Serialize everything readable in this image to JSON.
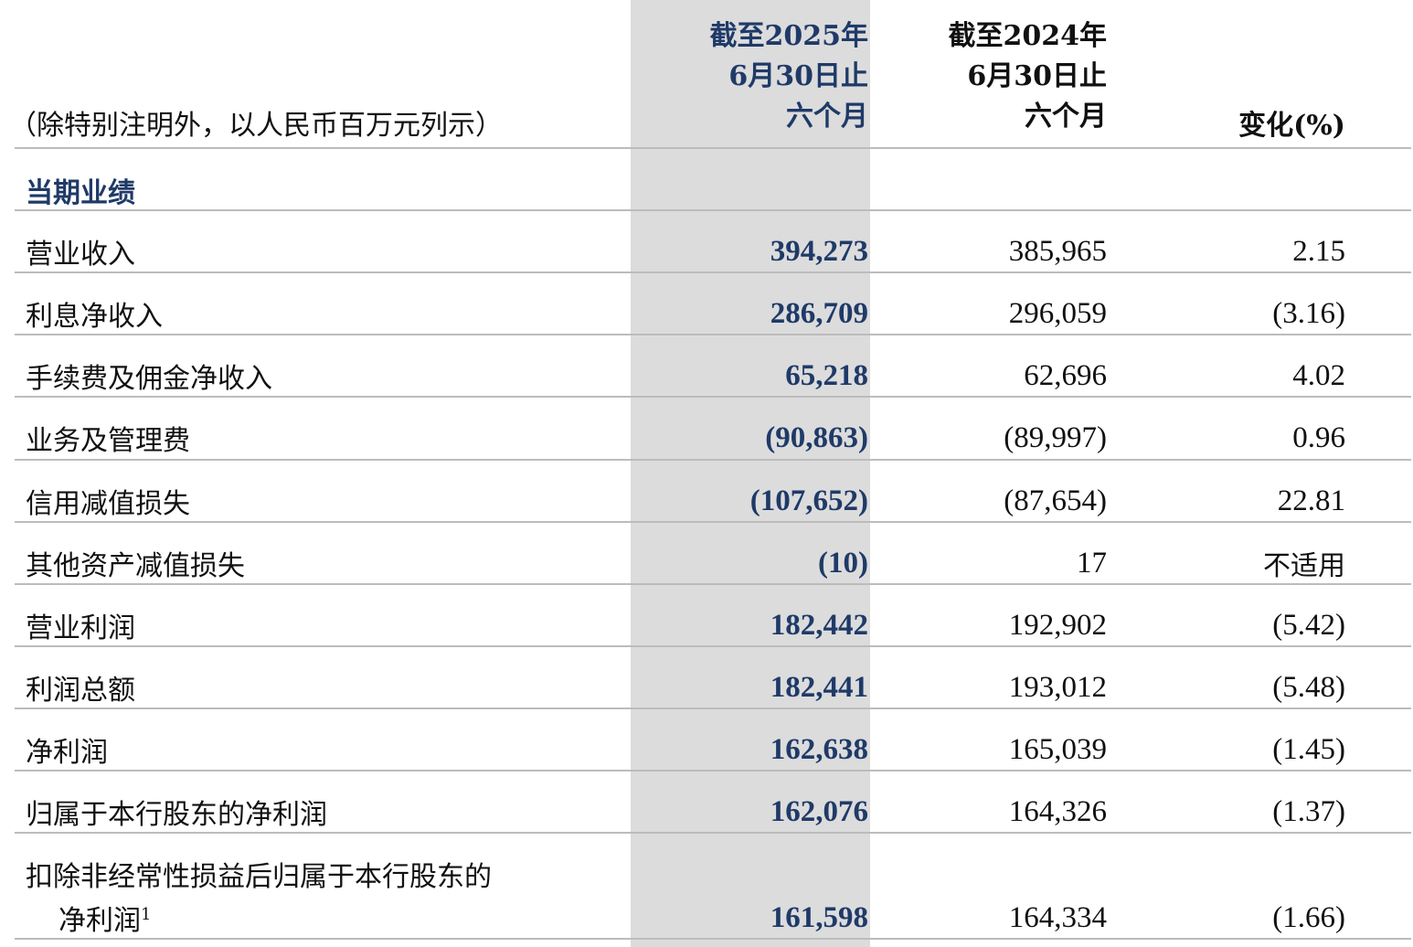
{
  "header": {
    "unit_note": "（除特别注明外，以人民币百万元列示）",
    "col_2025": [
      "截至2025年",
      "6月30日止",
      "六个月"
    ],
    "col_2024": [
      "截至2024年",
      "6月30日止",
      "六个月"
    ],
    "col_change": "变化(%)"
  },
  "section_title": "当期业绩",
  "rows": [
    {
      "label": "营业收入",
      "v2025": "394,273",
      "v2024": "385,965",
      "change": "2.15"
    },
    {
      "label": "利息净收入",
      "v2025": "286,709",
      "v2024": "296,059",
      "change": "(3.16)"
    },
    {
      "label": "手续费及佣金净收入",
      "v2025": "65,218",
      "v2024": "62,696",
      "change": "4.02"
    },
    {
      "label": "业务及管理费",
      "v2025": "(90,863)",
      "v2024": "(89,997)",
      "change": "0.96"
    },
    {
      "label": "信用减值损失",
      "v2025": "(107,652)",
      "v2024": "(87,654)",
      "change": "22.81"
    },
    {
      "label": "其他资产减值损失",
      "v2025": "(10)",
      "v2024": "17",
      "change": "不适用"
    },
    {
      "label": "营业利润",
      "v2025": "182,442",
      "v2024": "192,902",
      "change": "(5.42)"
    },
    {
      "label": "利润总额",
      "v2025": "182,441",
      "v2024": "193,012",
      "change": "(5.48)"
    },
    {
      "label": "净利润",
      "v2025": "162,638",
      "v2024": "165,039",
      "change": "(1.45)"
    },
    {
      "label": "归属于本行股东的净利润",
      "v2025": "162,076",
      "v2024": "164,326",
      "change": "(1.37)"
    }
  ],
  "last_row": {
    "label_line1": "扣除非经常性损益后归属于本行股东的",
    "label_line2": "净利润",
    "footnote": "1",
    "v2025": "161,598",
    "v2024": "164,334",
    "change": "(1.66)"
  }
}
